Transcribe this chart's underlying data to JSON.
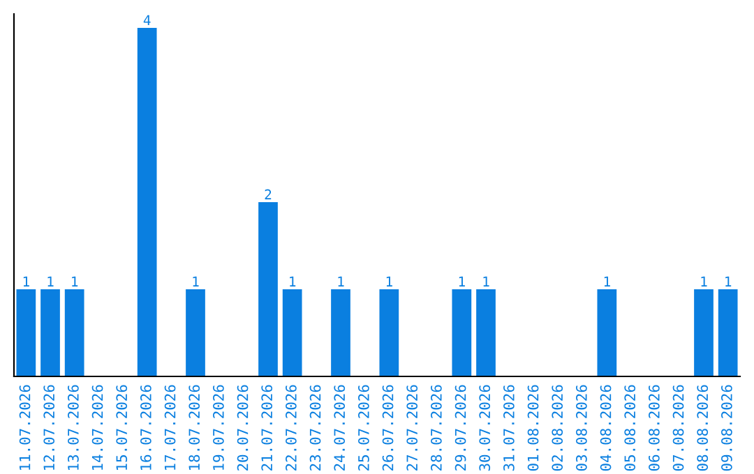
{
  "chart_data": {
    "type": "bar",
    "categories": [
      "11.07.2026",
      "12.07.2026",
      "13.07.2026",
      "14.07.2026",
      "15.07.2026",
      "16.07.2026",
      "17.07.2026",
      "18.07.2026",
      "19.07.2026",
      "20.07.2026",
      "21.07.2026",
      "22.07.2026",
      "23.07.2026",
      "24.07.2026",
      "25.07.2026",
      "26.07.2026",
      "27.07.2026",
      "28.07.2026",
      "29.07.2026",
      "30.07.2026",
      "31.07.2026",
      "01.08.2026",
      "02.08.2026",
      "03.08.2026",
      "04.08.2026",
      "05.08.2026",
      "06.08.2026",
      "07.08.2026",
      "08.08.2026",
      "09.08.2026"
    ],
    "values": [
      1,
      1,
      1,
      0,
      0,
      4,
      0,
      1,
      0,
      0,
      2,
      1,
      0,
      1,
      0,
      1,
      0,
      0,
      1,
      1,
      0,
      0,
      0,
      0,
      1,
      0,
      0,
      0,
      1,
      1
    ],
    "value_labels": [
      "1",
      "1",
      "1",
      null,
      null,
      "4",
      null,
      "1",
      null,
      null,
      "2",
      "1",
      null,
      "1",
      null,
      "1",
      null,
      null,
      "1",
      "1",
      null,
      null,
      null,
      null,
      "1",
      null,
      null,
      null,
      "1",
      "1"
    ],
    "color": "#0a7fe0",
    "tick_labels": "x"
  }
}
